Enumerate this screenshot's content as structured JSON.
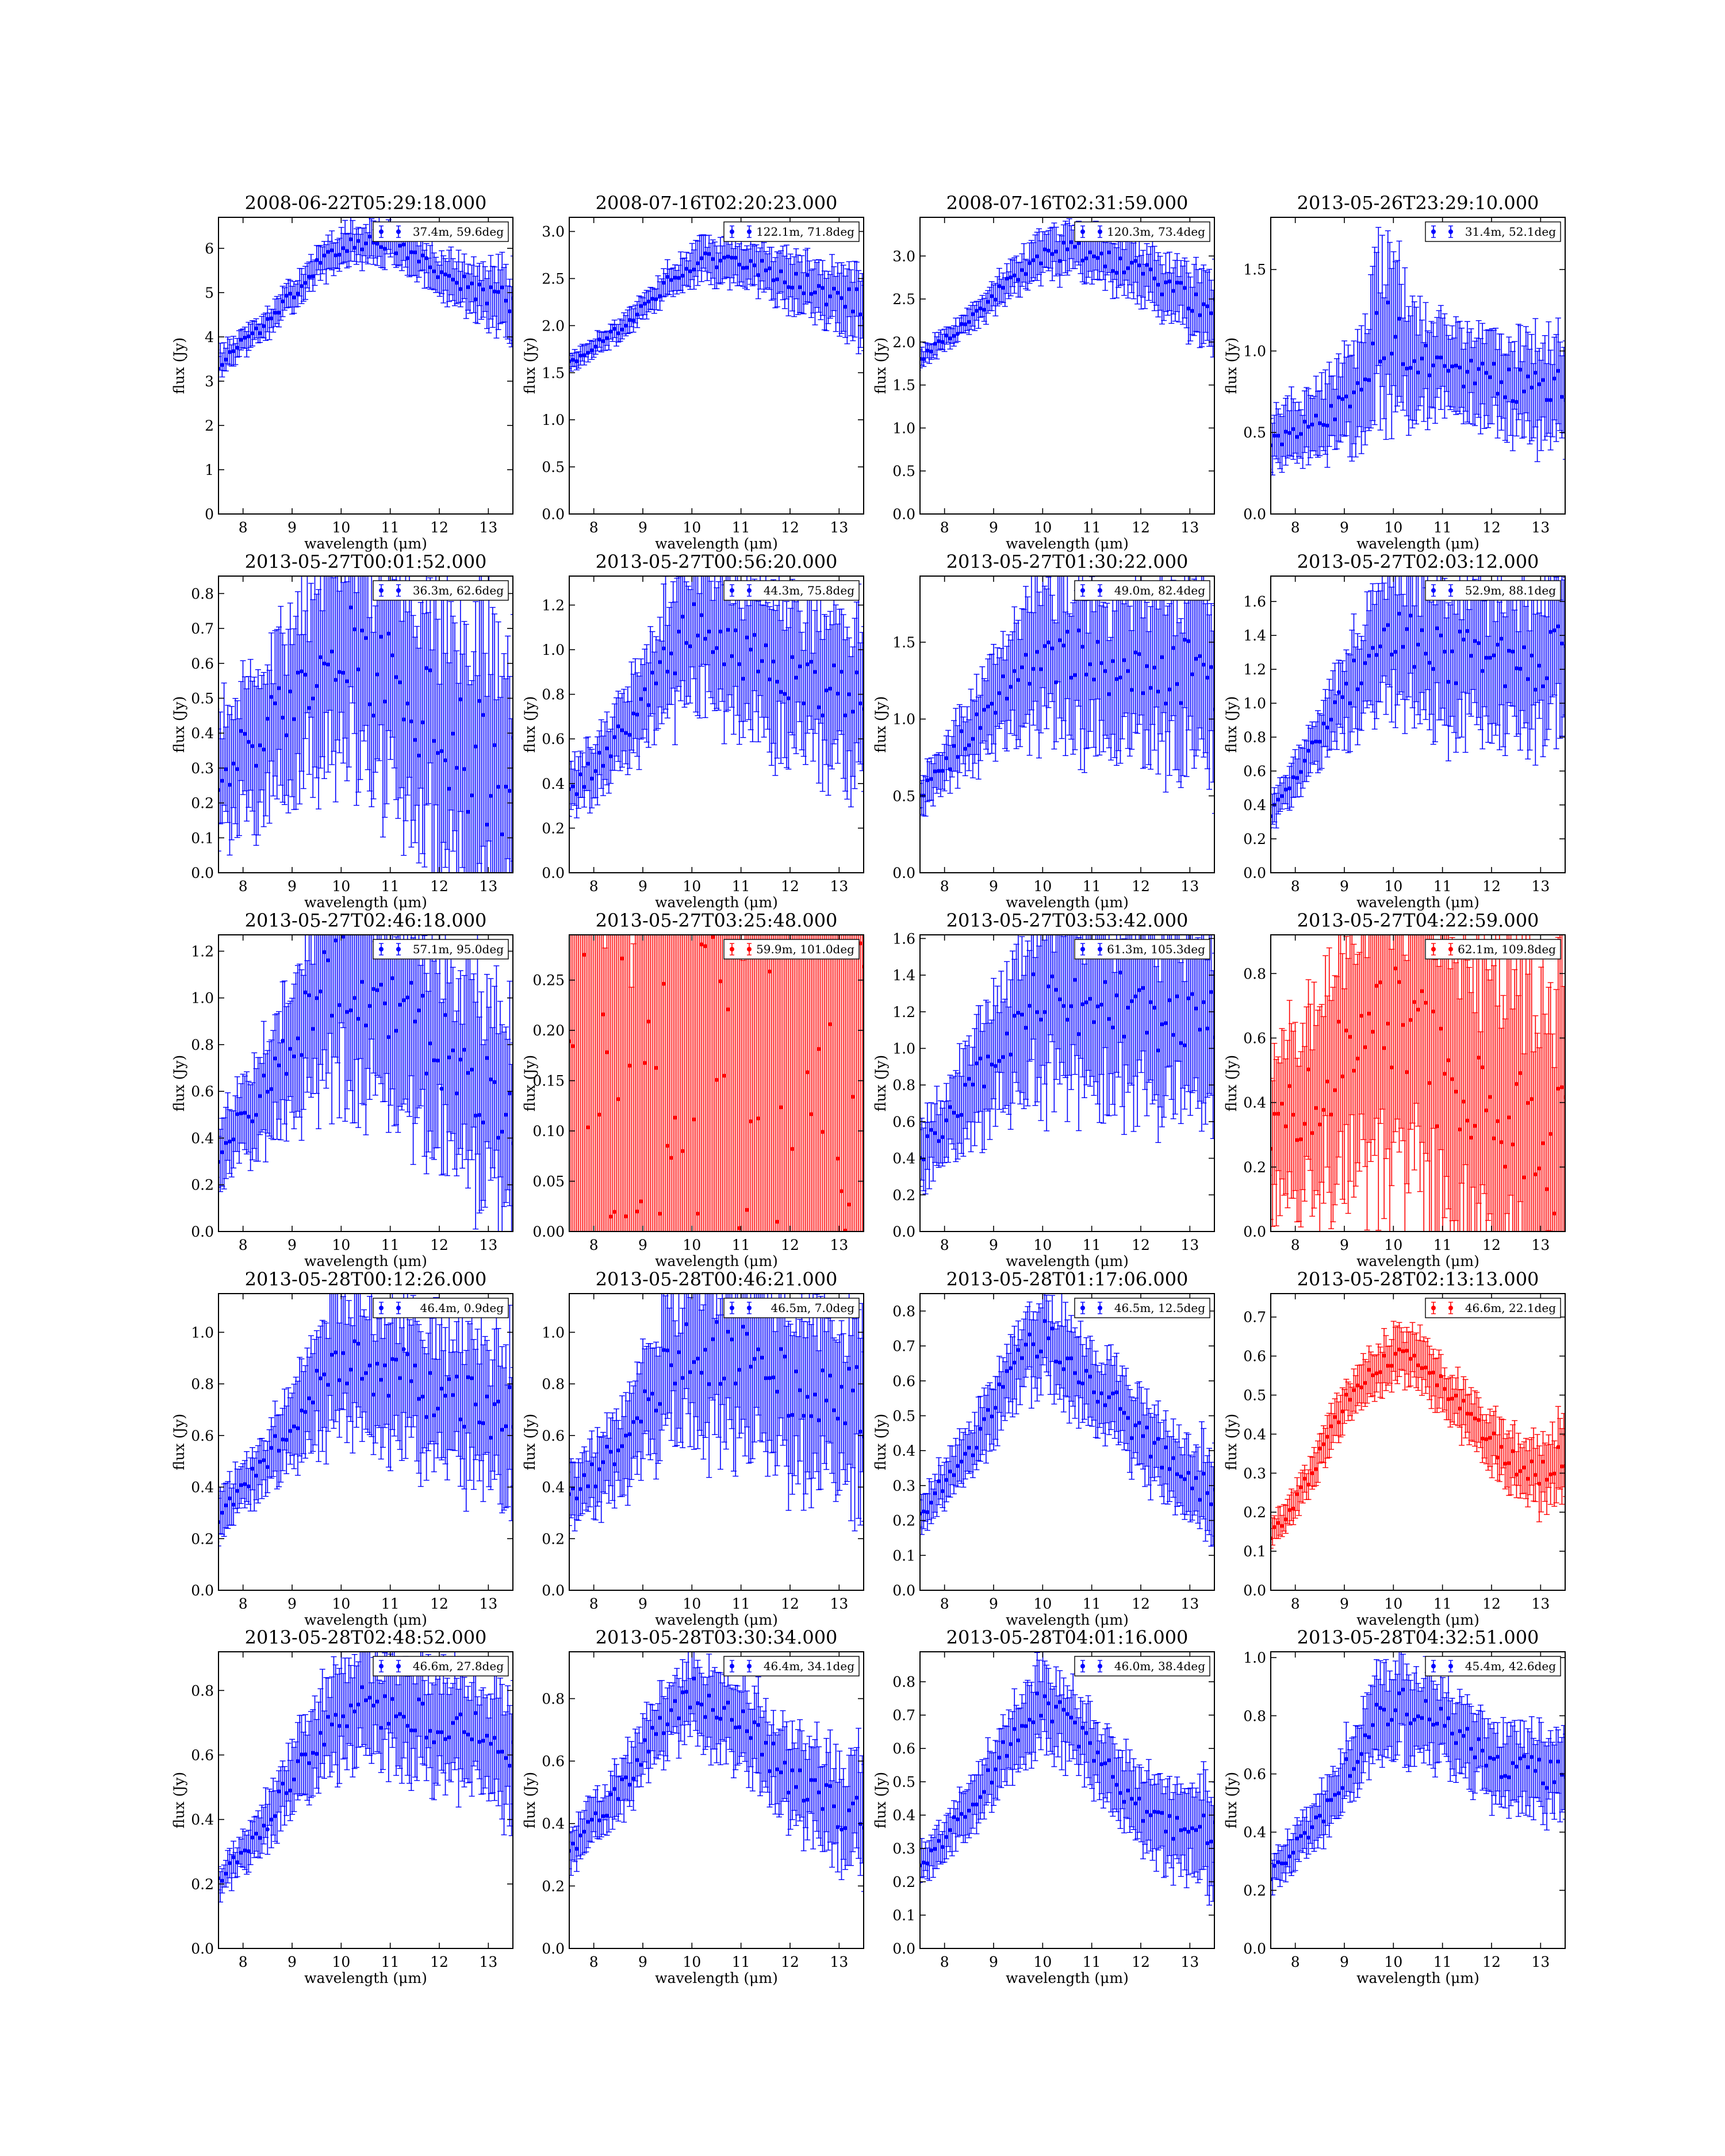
{
  "figure": {
    "xlabel": "wavelength (μm)",
    "ylabel": "flux (Jy)",
    "xlim": [
      7.5,
      13.5
    ],
    "xticks": [
      8,
      9,
      10,
      11,
      12,
      13
    ]
  },
  "chart_data": [
    {
      "type": "scatter",
      "title": "2008-06-22T05:29:18.000",
      "legend": "37.4m, 59.6deg",
      "color": "#0000ff",
      "ylim": [
        0,
        6.7
      ],
      "yticks": [
        0,
        1,
        2,
        3,
        4,
        5,
        6
      ],
      "yfmt": 0,
      "legend_loc": "top-right",
      "profile": {
        "x": [
          7.5,
          8.5,
          9.5,
          10.2,
          11.0,
          12.0,
          13.0,
          13.5
        ],
        "y": [
          3.4,
          4.3,
          5.6,
          6.1,
          6.15,
          5.4,
          4.9,
          4.8
        ],
        "err": [
          0.3,
          0.25,
          0.35,
          0.4,
          0.4,
          0.45,
          0.6,
          0.8
        ]
      }
    },
    {
      "type": "scatter",
      "title": "2008-07-16T02:20:23.000",
      "legend": "122.1m, 71.8deg",
      "color": "#0000ff",
      "ylim": [
        0,
        3.15
      ],
      "yticks": [
        0.0,
        0.5,
        1.0,
        1.5,
        2.0,
        2.5,
        3.0
      ],
      "yfmt": 1,
      "legend_loc": "top-right",
      "profile": {
        "x": [
          7.5,
          8.5,
          9.5,
          10.2,
          11.0,
          12.0,
          13.0,
          13.5
        ],
        "y": [
          1.6,
          1.95,
          2.45,
          2.7,
          2.7,
          2.5,
          2.3,
          2.2
        ],
        "err": [
          0.08,
          0.1,
          0.15,
          0.2,
          0.2,
          0.25,
          0.3,
          0.4
        ]
      }
    },
    {
      "type": "scatter",
      "title": "2008-07-16T02:31:59.000",
      "legend": "120.3m, 73.4deg",
      "color": "#0000ff",
      "ylim": [
        0,
        3.45
      ],
      "yticks": [
        0.0,
        0.5,
        1.0,
        1.5,
        2.0,
        2.5,
        3.0
      ],
      "yfmt": 1,
      "legend_loc": "top-right",
      "profile": {
        "x": [
          7.5,
          8.5,
          9.5,
          10.2,
          11.0,
          12.0,
          13.0,
          13.5
        ],
        "y": [
          1.8,
          2.25,
          2.8,
          3.05,
          3.05,
          2.8,
          2.5,
          2.4
        ],
        "err": [
          0.1,
          0.12,
          0.2,
          0.25,
          0.25,
          0.3,
          0.35,
          0.45
        ]
      }
    },
    {
      "type": "scatter",
      "title": "2013-05-26T23:29:10.000",
      "legend": "31.4m, 52.1deg",
      "color": "#0000ff",
      "ylim": [
        0,
        1.82
      ],
      "yticks": [
        0.0,
        0.5,
        1.0,
        1.5
      ],
      "yfmt": 1,
      "legend_loc": "top-right",
      "profile": {
        "x": [
          7.5,
          8.5,
          9.3,
          9.7,
          10.5,
          11.5,
          12.5,
          13.5
        ],
        "y": [
          0.45,
          0.55,
          0.75,
          1.15,
          0.95,
          0.85,
          0.8,
          0.75
        ],
        "err": [
          0.15,
          0.2,
          0.3,
          0.5,
          0.3,
          0.25,
          0.25,
          0.3
        ]
      }
    },
    {
      "type": "scatter",
      "title": "2013-05-27T00:01:52.000",
      "legend": "36.3m, 62.6deg",
      "color": "#0000ff",
      "ylim": [
        0,
        0.85
      ],
      "yticks": [
        0.0,
        0.1,
        0.2,
        0.3,
        0.4,
        0.5,
        0.6,
        0.7,
        0.8
      ],
      "yfmt": 1,
      "legend_loc": "top-right",
      "profile": {
        "x": [
          7.5,
          8.5,
          9.5,
          10.0,
          11.0,
          12.0,
          13.0,
          13.5
        ],
        "y": [
          0.3,
          0.4,
          0.6,
          0.65,
          0.55,
          0.4,
          0.3,
          0.25
        ],
        "err": [
          0.15,
          0.2,
          0.25,
          0.3,
          0.3,
          0.35,
          0.4,
          0.4
        ]
      }
    },
    {
      "type": "scatter",
      "title": "2013-05-27T00:56:20.000",
      "legend": "44.3m, 75.8deg",
      "color": "#0000ff",
      "ylim": [
        0,
        1.33
      ],
      "yticks": [
        0.0,
        0.2,
        0.4,
        0.6,
        0.8,
        1.0,
        1.2
      ],
      "yfmt": 1,
      "legend_loc": "top-right",
      "profile": {
        "x": [
          7.5,
          8.5,
          9.5,
          10.0,
          11.0,
          12.0,
          13.0,
          13.5
        ],
        "y": [
          0.35,
          0.6,
          0.95,
          1.1,
          1.0,
          0.9,
          0.8,
          0.75
        ],
        "err": [
          0.1,
          0.15,
          0.25,
          0.3,
          0.3,
          0.3,
          0.3,
          0.35
        ]
      }
    },
    {
      "type": "scatter",
      "title": "2013-05-27T01:30:22.000",
      "legend": "49.0m, 82.4deg",
      "color": "#0000ff",
      "ylim": [
        0,
        1.93
      ],
      "yticks": [
        0.0,
        0.5,
        1.0,
        1.5
      ],
      "yfmt": 1,
      "legend_loc": "top-right",
      "profile": {
        "x": [
          7.5,
          8.5,
          9.5,
          10.0,
          11.0,
          12.0,
          13.0,
          13.5
        ],
        "y": [
          0.5,
          0.9,
          1.3,
          1.45,
          1.35,
          1.3,
          1.3,
          1.3
        ],
        "err": [
          0.1,
          0.2,
          0.35,
          0.45,
          0.45,
          0.45,
          0.5,
          0.55
        ]
      }
    },
    {
      "type": "scatter",
      "title": "2013-05-27T02:03:12.000",
      "legend": "52.9m, 88.1deg",
      "color": "#0000ff",
      "ylim": [
        0,
        1.75
      ],
      "yticks": [
        0.0,
        0.2,
        0.4,
        0.6,
        0.8,
        1.0,
        1.2,
        1.4,
        1.6
      ],
      "yfmt": 1,
      "legend_loc": "top-right",
      "profile": {
        "x": [
          7.5,
          8.5,
          9.5,
          10.0,
          11.0,
          12.0,
          13.0,
          13.5
        ],
        "y": [
          0.35,
          0.8,
          1.3,
          1.4,
          1.3,
          1.25,
          1.25,
          1.3
        ],
        "err": [
          0.08,
          0.15,
          0.3,
          0.4,
          0.4,
          0.4,
          0.4,
          0.45
        ]
      }
    },
    {
      "type": "scatter",
      "title": "2013-05-27T02:46:18.000",
      "legend": "57.1m, 95.0deg",
      "color": "#0000ff",
      "ylim": [
        0,
        1.27
      ],
      "yticks": [
        0.0,
        0.2,
        0.4,
        0.6,
        0.8,
        1.0,
        1.2
      ],
      "yfmt": 1,
      "legend_loc": "top-right",
      "profile": {
        "x": [
          7.5,
          8.5,
          9.5,
          10.0,
          11.0,
          12.0,
          13.0,
          13.5
        ],
        "y": [
          0.35,
          0.6,
          1.0,
          1.1,
          1.0,
          0.8,
          0.6,
          0.5
        ],
        "err": [
          0.12,
          0.2,
          0.35,
          0.45,
          0.4,
          0.4,
          0.4,
          0.4
        ]
      }
    },
    {
      "type": "scatter",
      "title": "2013-05-27T03:25:48.000",
      "legend": "59.9m, 101.0deg",
      "color": "#ff0000",
      "ylim": [
        0,
        0.295
      ],
      "yticks": [
        0.0,
        0.05,
        0.1,
        0.15,
        0.2,
        0.25
      ],
      "yfmt": 2,
      "legend_loc": "top-right",
      "profile": {
        "x": [
          7.5,
          8.5,
          9.5,
          10.5,
          11.5,
          12.5,
          13.5
        ],
        "y": [
          0.07,
          0.05,
          0.055,
          0.09,
          0.11,
          0.13,
          0.16
        ],
        "err": [
          0.5,
          0.5,
          0.5,
          0.5,
          0.5,
          0.5,
          0.5
        ]
      }
    },
    {
      "type": "scatter",
      "title": "2013-05-27T03:53:42.000",
      "legend": "61.3m, 105.3deg",
      "color": "#0000ff",
      "ylim": [
        0,
        1.62
      ],
      "yticks": [
        0.0,
        0.2,
        0.4,
        0.6,
        0.8,
        1.0,
        1.2,
        1.4,
        1.6
      ],
      "yfmt": 1,
      "legend_loc": "top-right",
      "profile": {
        "x": [
          7.5,
          8.5,
          9.5,
          10.0,
          11.0,
          12.0,
          13.0,
          13.5
        ],
        "y": [
          0.4,
          0.75,
          1.15,
          1.3,
          1.25,
          1.2,
          1.15,
          1.15
        ],
        "err": [
          0.15,
          0.25,
          0.35,
          0.45,
          0.45,
          0.45,
          0.45,
          0.5
        ]
      }
    },
    {
      "type": "scatter",
      "title": "2013-05-27T04:22:59.000",
      "legend": "62.1m, 109.8deg",
      "color": "#ff0000",
      "ylim": [
        0,
        0.92
      ],
      "yticks": [
        0.0,
        0.2,
        0.4,
        0.6,
        0.8
      ],
      "yfmt": 1,
      "legend_loc": "top-right",
      "profile": {
        "x": [
          7.5,
          8.5,
          9.5,
          10.0,
          11.0,
          12.0,
          13.0,
          13.5
        ],
        "y": [
          0.3,
          0.45,
          0.6,
          0.65,
          0.5,
          0.4,
          0.3,
          0.25
        ],
        "err": [
          0.2,
          0.3,
          0.4,
          0.45,
          0.45,
          0.45,
          0.5,
          0.5
        ]
      }
    },
    {
      "type": "scatter",
      "title": "2013-05-28T00:12:26.000",
      "legend": "46.4m, 0.9deg",
      "color": "#0000ff",
      "ylim": [
        0,
        1.15
      ],
      "yticks": [
        0.0,
        0.2,
        0.4,
        0.6,
        0.8,
        1.0
      ],
      "yfmt": 1,
      "legend_loc": "top-right",
      "profile": {
        "x": [
          7.5,
          8.5,
          9.5,
          10.0,
          11.0,
          12.0,
          13.0,
          13.5
        ],
        "y": [
          0.3,
          0.5,
          0.8,
          0.9,
          0.85,
          0.75,
          0.7,
          0.65
        ],
        "err": [
          0.08,
          0.1,
          0.2,
          0.25,
          0.25,
          0.25,
          0.25,
          0.3
        ]
      }
    },
    {
      "type": "scatter",
      "title": "2013-05-28T00:46:21.000",
      "legend": "46.5m, 7.0deg",
      "color": "#0000ff",
      "ylim": [
        0,
        1.15
      ],
      "yticks": [
        0.0,
        0.2,
        0.4,
        0.6,
        0.8,
        1.0
      ],
      "yfmt": 1,
      "legend_loc": "top-right",
      "profile": {
        "x": [
          7.5,
          8.5,
          9.5,
          10.0,
          11.0,
          12.0,
          13.0,
          13.5
        ],
        "y": [
          0.35,
          0.55,
          0.85,
          0.95,
          0.9,
          0.8,
          0.75,
          0.75
        ],
        "err": [
          0.1,
          0.15,
          0.25,
          0.3,
          0.3,
          0.3,
          0.3,
          0.35
        ]
      }
    },
    {
      "type": "scatter",
      "title": "2013-05-28T01:17:06.000",
      "legend": "46.5m, 12.5deg",
      "color": "#0000ff",
      "ylim": [
        0,
        0.85
      ],
      "yticks": [
        0.0,
        0.1,
        0.2,
        0.3,
        0.4,
        0.5,
        0.6,
        0.7,
        0.8
      ],
      "yfmt": 1,
      "legend_loc": "top-right",
      "profile": {
        "x": [
          7.5,
          8.5,
          9.5,
          10.0,
          11.0,
          12.0,
          13.0,
          13.5
        ],
        "y": [
          0.22,
          0.4,
          0.65,
          0.73,
          0.6,
          0.45,
          0.32,
          0.28
        ],
        "err": [
          0.05,
          0.07,
          0.1,
          0.12,
          0.1,
          0.1,
          0.1,
          0.12
        ]
      }
    },
    {
      "type": "scatter",
      "title": "2013-05-28T02:13:13.000",
      "legend": "46.6m, 22.1deg",
      "color": "#ff0000",
      "ylim": [
        0,
        0.76
      ],
      "yticks": [
        0.0,
        0.1,
        0.2,
        0.3,
        0.4,
        0.5,
        0.6,
        0.7
      ],
      "yfmt": 1,
      "legend_loc": "top-right",
      "profile": {
        "x": [
          7.5,
          8.0,
          9.0,
          10.0,
          10.5,
          11.5,
          12.5,
          13.0,
          13.5
        ],
        "y": [
          0.14,
          0.22,
          0.48,
          0.6,
          0.6,
          0.45,
          0.32,
          0.3,
          0.35
        ],
        "err": [
          0.03,
          0.04,
          0.05,
          0.06,
          0.06,
          0.06,
          0.07,
          0.08,
          0.1
        ]
      }
    },
    {
      "type": "scatter",
      "title": "2013-05-28T02:48:52.000",
      "legend": "46.6m, 27.8deg",
      "color": "#0000ff",
      "ylim": [
        0,
        0.92
      ],
      "yticks": [
        0.0,
        0.2,
        0.4,
        0.6,
        0.8
      ],
      "yfmt": 1,
      "legend_loc": "top-right",
      "profile": {
        "x": [
          7.5,
          8.5,
          9.5,
          10.0,
          11.0,
          12.0,
          13.0,
          13.5
        ],
        "y": [
          0.2,
          0.4,
          0.65,
          0.75,
          0.75,
          0.7,
          0.65,
          0.6
        ],
        "err": [
          0.04,
          0.07,
          0.12,
          0.15,
          0.15,
          0.15,
          0.15,
          0.2
        ]
      }
    },
    {
      "type": "scatter",
      "title": "2013-05-28T03:30:34.000",
      "legend": "46.4m, 34.1deg",
      "color": "#0000ff",
      "ylim": [
        0,
        0.95
      ],
      "yticks": [
        0.0,
        0.2,
        0.4,
        0.6,
        0.8
      ],
      "yfmt": 1,
      "legend_loc": "top-right",
      "profile": {
        "x": [
          7.5,
          8.5,
          9.5,
          10.0,
          11.0,
          12.0,
          13.0,
          13.5
        ],
        "y": [
          0.3,
          0.5,
          0.75,
          0.82,
          0.72,
          0.55,
          0.45,
          0.42
        ],
        "err": [
          0.06,
          0.08,
          0.1,
          0.12,
          0.12,
          0.13,
          0.15,
          0.18
        ]
      }
    },
    {
      "type": "scatter",
      "title": "2013-05-28T04:01:16.000",
      "legend": "46.0m, 38.4deg",
      "color": "#0000ff",
      "ylim": [
        0,
        0.89
      ],
      "yticks": [
        0.0,
        0.1,
        0.2,
        0.3,
        0.4,
        0.5,
        0.6,
        0.7,
        0.8
      ],
      "yfmt": 1,
      "legend_loc": "top-right",
      "profile": {
        "x": [
          7.5,
          8.5,
          9.5,
          10.0,
          11.0,
          12.0,
          13.0,
          13.5
        ],
        "y": [
          0.25,
          0.42,
          0.65,
          0.75,
          0.6,
          0.42,
          0.35,
          0.33
        ],
        "err": [
          0.05,
          0.07,
          0.1,
          0.12,
          0.1,
          0.1,
          0.12,
          0.15
        ]
      }
    },
    {
      "type": "scatter",
      "title": "2013-05-28T04:32:51.000",
      "legend": "45.4m, 42.6deg",
      "color": "#0000ff",
      "ylim": [
        0,
        1.02
      ],
      "yticks": [
        0.0,
        0.2,
        0.4,
        0.6,
        0.8,
        1.0
      ],
      "yfmt": 1,
      "legend_loc": "top-right",
      "profile": {
        "x": [
          7.5,
          8.5,
          9.5,
          10.0,
          11.0,
          12.0,
          13.0,
          13.5
        ],
        "y": [
          0.25,
          0.45,
          0.75,
          0.85,
          0.78,
          0.65,
          0.6,
          0.6
        ],
        "err": [
          0.05,
          0.08,
          0.12,
          0.15,
          0.12,
          0.12,
          0.12,
          0.15
        ]
      }
    }
  ]
}
